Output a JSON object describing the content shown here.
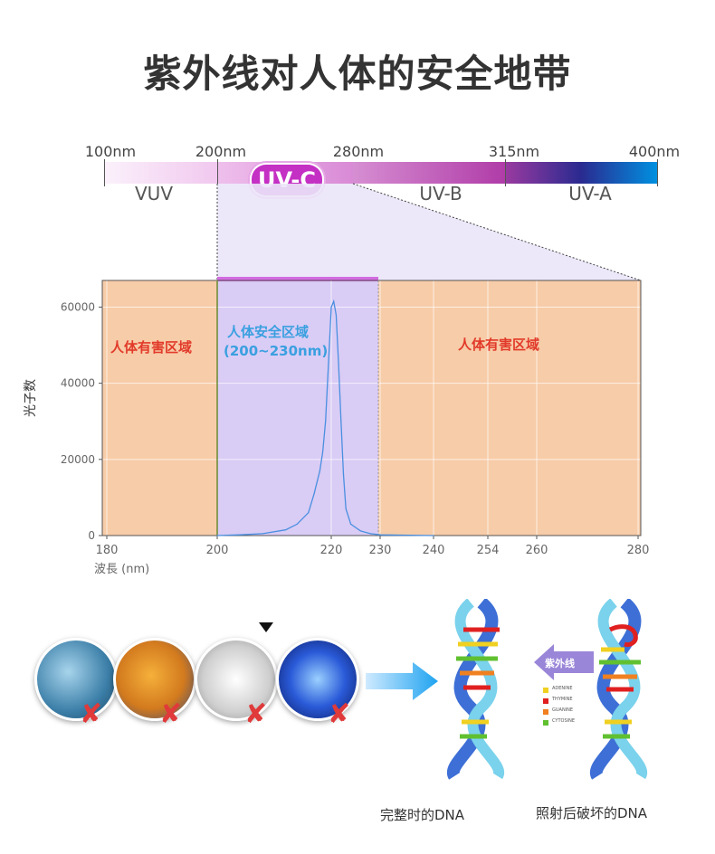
{
  "title": "紫外线对人体的安全地带",
  "spectrum": {
    "labels": [
      "100nm",
      "200nm",
      "280nm",
      "315nm",
      "400nm"
    ],
    "regions": [
      "VUV",
      "UV-B",
      "UV-A"
    ],
    "uvc_label": "UV-C"
  },
  "chart_data": {
    "type": "line",
    "ylabel": "光子数",
    "xlabel": "波長 (nm)",
    "x_ticks": [
      "180",
      "200",
      "220",
      "230",
      "240",
      "254",
      "260",
      "280"
    ],
    "y_ticks": [
      "0",
      "20000",
      "40000",
      "60000"
    ],
    "ylim": [
      0,
      67000
    ],
    "grid": true,
    "series": [
      {
        "x": [
          200,
          204,
          208,
          212,
          214,
          216,
          217,
          218,
          218.5,
          219,
          219.5,
          220,
          220.5,
          221,
          221.5,
          222,
          222.5,
          223,
          224,
          226,
          228,
          230,
          240
        ],
        "y": [
          0,
          200,
          500,
          1500,
          3000,
          6000,
          11000,
          17000,
          22000,
          30000,
          45000,
          60000,
          61500,
          58000,
          45000,
          30000,
          16000,
          7000,
          3000,
          1200,
          500,
          200,
          0
        ]
      }
    ],
    "annotations": {
      "harmful_left": "人体有害区域",
      "safe": "人体安全区域",
      "safe_range": "(200~230nm)",
      "harmful_right": "人体有害区域"
    }
  },
  "bottom": {
    "uv_badge": "紫外线",
    "intact_dna": "完整时的DNA",
    "damaged_dna": "照射后破坏的DNA",
    "legend_items": [
      "ADENINE",
      "THYMINE",
      "GUANINE",
      "CYTOSINE"
    ],
    "legend_colors": [
      "#f0d020",
      "#e02020",
      "#f08020",
      "#60c030"
    ]
  }
}
